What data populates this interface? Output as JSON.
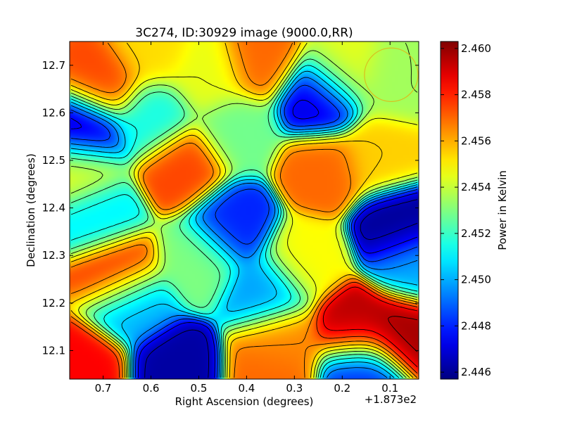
{
  "chart_data": {
    "type": "heatmap",
    "title": "3C274, ID:30929 image (9000.0,RR)",
    "xlabel": "Right Ascension (degrees)",
    "ylabel": "Declination (degrees)",
    "x_offset_label": "+1.873e2",
    "xlim": [
      0.77,
      0.04
    ],
    "ylim": [
      12.04,
      12.75
    ],
    "x_ticks": [
      0.7,
      0.6,
      0.5,
      0.4,
      0.3,
      0.2,
      0.1
    ],
    "x_tick_labels": [
      "0.7",
      "0.6",
      "0.5",
      "0.4",
      "0.3",
      "0.2",
      "0.1"
    ],
    "y_ticks": [
      12.1,
      12.2,
      12.3,
      12.4,
      12.5,
      12.6,
      12.7
    ],
    "y_tick_labels": [
      "12.1",
      "12.2",
      "12.3",
      "12.4",
      "12.5",
      "12.6",
      "12.7"
    ],
    "colorbar": {
      "label": "Power in Kelvin",
      "vmin": 2.4457,
      "vmax": 2.4603,
      "ticks": [
        2.446,
        2.448,
        2.45,
        2.452,
        2.454,
        2.456,
        2.458,
        2.46
      ],
      "tick_labels": [
        "2.446",
        "2.448",
        "2.450",
        "2.452",
        "2.454",
        "2.456",
        "2.458",
        "2.460"
      ],
      "colormap": "jet"
    },
    "baseline_value": 2.452,
    "features": [
      {
        "x": 0.7,
        "y": 12.66,
        "value": 2.4575
      },
      {
        "x": 0.37,
        "y": 12.71,
        "value": 2.457
      },
      {
        "x": 0.74,
        "y": 12.565,
        "value": 2.4465
      },
      {
        "x": 0.25,
        "y": 12.63,
        "value": 2.447
      },
      {
        "x": 0.09,
        "y": 12.665,
        "value": 2.4535
      },
      {
        "x": 0.53,
        "y": 12.485,
        "value": 2.4575
      },
      {
        "x": 0.24,
        "y": 12.48,
        "value": 2.457
      },
      {
        "x": 0.12,
        "y": 12.51,
        "value": 2.4555
      },
      {
        "x": 0.43,
        "y": 12.365,
        "value": 2.448
      },
      {
        "x": 0.08,
        "y": 12.36,
        "value": 2.446
      },
      {
        "x": 0.67,
        "y": 12.265,
        "value": 2.458
      },
      {
        "x": 0.28,
        "y": 12.29,
        "value": 2.4548
      },
      {
        "x": 0.17,
        "y": 12.145,
        "value": 2.4595
      },
      {
        "x": 0.08,
        "y": 12.14,
        "value": 2.4598
      },
      {
        "x": 0.55,
        "y": 12.06,
        "value": 2.4462
      },
      {
        "x": 0.74,
        "y": 12.06,
        "value": 2.4585
      },
      {
        "x": 0.35,
        "y": 12.05,
        "value": 2.457
      },
      {
        "x": 0.16,
        "y": 12.06,
        "value": 2.448
      },
      {
        "x": 0.33,
        "y": 12.12,
        "value": 2.4565
      },
      {
        "x": 0.64,
        "y": 12.2,
        "value": 2.45
      },
      {
        "x": 0.36,
        "y": 12.22,
        "value": 2.4498
      },
      {
        "x": 0.5,
        "y": 12.29,
        "value": 2.453
      },
      {
        "x": 0.71,
        "y": 12.38,
        "value": 2.451
      },
      {
        "x": 0.05,
        "y": 12.28,
        "value": 2.45
      },
      {
        "x": 0.75,
        "y": 12.48,
        "value": 2.4545
      },
      {
        "x": 0.48,
        "y": 12.68,
        "value": 2.4545
      },
      {
        "x": 0.6,
        "y": 12.59,
        "value": 2.4515
      },
      {
        "x": 0.42,
        "y": 12.56,
        "value": 2.4528
      },
      {
        "x": 0.6,
        "y": 12.73,
        "value": 2.4553
      },
      {
        "x": 0.2,
        "y": 12.69,
        "value": 2.4545
      }
    ],
    "contour_levels": [
      2.4465,
      2.4475,
      2.4485,
      2.4495,
      2.4505,
      2.4515,
      2.4525,
      2.4535,
      2.4545,
      2.4555,
      2.4565,
      2.4575,
      2.4585,
      2.4595
    ],
    "beam_circle": {
      "x": 0.0975,
      "y": 12.68,
      "radius": 0.056,
      "color": "#d8c020"
    },
    "grid": false
  }
}
